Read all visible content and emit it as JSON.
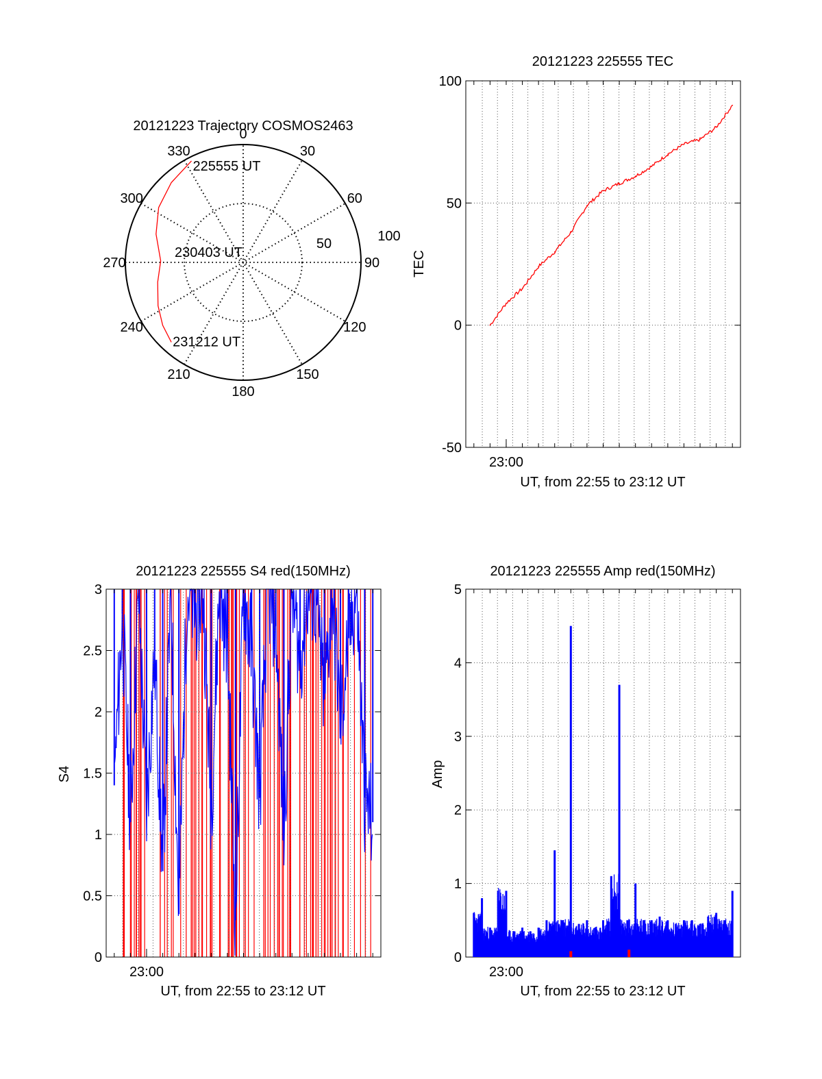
{
  "chart_data": [
    {
      "type": "polar",
      "title": "20121223 Trajectory COSMOS2463",
      "azimuth_labels": [
        "0",
        "30",
        "60",
        "90",
        "120",
        "150",
        "180",
        "210",
        "240",
        "270",
        "300",
        "330"
      ],
      "radial_labels": [
        "50",
        "100"
      ],
      "center_label": "230403 UT",
      "track_color": "#ff0000",
      "track": {
        "start": {
          "label": "225555 UT",
          "az": 333,
          "el": 3
        },
        "mid": {
          "label": "230403 UT",
          "az": 271,
          "el": 27
        },
        "end": {
          "label": "231212 UT",
          "az": 222,
          "el": 8
        },
        "points": [
          [
            333,
            3
          ],
          [
            318,
            8
          ],
          [
            303,
            13
          ],
          [
            288,
            20
          ],
          [
            271,
            27
          ],
          [
            257,
            23
          ],
          [
            243,
            17
          ],
          [
            232,
            12
          ],
          [
            222,
            8
          ]
        ]
      }
    },
    {
      "type": "line",
      "title": "20121223 225555 TEC",
      "xlabel": "UT, from 22:55 to 23:12 UT",
      "ylabel": "TEC",
      "xlim": [
        -2.5,
        14.5
      ],
      "ylim": [
        -50,
        100
      ],
      "yticks": [
        "100",
        "50",
        "0",
        "-50"
      ],
      "xtick_labels": [
        {
          "x": 0,
          "label": "23:00"
        }
      ],
      "grid": true,
      "series_color": "#ff0000",
      "x": [
        -1,
        0,
        1,
        2,
        3,
        4,
        5,
        6,
        7,
        8,
        9,
        10,
        11,
        12,
        13,
        14
      ],
      "values": [
        0,
        9,
        15,
        24,
        30,
        38,
        49,
        55,
        58,
        61,
        65,
        70,
        74,
        76,
        81,
        90
      ]
    },
    {
      "type": "line",
      "title": "20121223 225555 S4 red(150MHz)",
      "xlabel": "UT, from 22:55 to 23:12 UT",
      "ylabel": "S4",
      "xlim": [
        -2.5,
        14.5
      ],
      "ylim": [
        0,
        3
      ],
      "yticks": [
        "3",
        "2.5",
        "2",
        "1.5",
        "1",
        "0.5",
        "0"
      ],
      "xtick_labels": [
        {
          "x": 0,
          "label": "23:00"
        }
      ],
      "grid": true,
      "colors": {
        "blue": "#0000ff",
        "red": "#ff0000"
      },
      "x": [
        -2.0,
        -1.5,
        -1.0,
        -0.5,
        0.0,
        0.5,
        1.0,
        1.5,
        2.0,
        2.5,
        3.0,
        3.5,
        4.0,
        4.5,
        5.0,
        5.5,
        6.0,
        6.5,
        7.0,
        7.5,
        8.0,
        8.5,
        9.0,
        9.5,
        10.0,
        10.5,
        11.0,
        11.5,
        12.0,
        12.5,
        13.0,
        13.5,
        14.0
      ],
      "values": [
        1.4,
        2.8,
        1.1,
        3.0,
        1.2,
        2.5,
        0.7,
        3.0,
        0.35,
        3.0,
        2.8,
        3.0,
        1.2,
        3.0,
        2.6,
        0.3,
        3.0,
        2.5,
        1.3,
        3.0,
        2.7,
        1.0,
        3.0,
        2.4,
        3.0,
        2.9,
        2.1,
        3.0,
        1.9,
        2.6,
        3.0,
        1.3,
        1.1
      ]
    },
    {
      "type": "bar",
      "title": "20121223 225555 Amp red(150MHz)",
      "xlabel": "UT, from 22:55 to 23:12 UT",
      "ylabel": "Amp",
      "xlim": [
        -2.5,
        14.5
      ],
      "ylim": [
        0,
        5
      ],
      "yticks": [
        "5",
        "4",
        "3",
        "2",
        "1",
        "0"
      ],
      "xtick_labels": [
        {
          "x": 0,
          "label": "23:00"
        }
      ],
      "grid": true,
      "colors": {
        "blue": "#0000ff",
        "red": "#ff0000"
      },
      "x": [
        -2.0,
        -1.5,
        -1.0,
        -0.5,
        0.0,
        0.5,
        1.0,
        1.5,
        2.0,
        2.5,
        3.0,
        3.5,
        4.0,
        4.5,
        5.0,
        5.5,
        6.0,
        6.5,
        7.0,
        7.5,
        8.0,
        8.5,
        9.0,
        9.5,
        10.0,
        10.5,
        11.0,
        11.5,
        12.0,
        12.5,
        13.0,
        13.5,
        14.0
      ],
      "values": [
        0.6,
        0.8,
        0.4,
        0.9,
        0.9,
        0.35,
        0.4,
        0.35,
        0.4,
        0.5,
        1.45,
        0.5,
        4.5,
        0.45,
        0.5,
        0.4,
        0.5,
        1.1,
        3.7,
        0.5,
        1.0,
        0.5,
        0.5,
        0.55,
        0.5,
        0.45,
        0.5,
        0.5,
        0.45,
        0.55,
        0.6,
        0.5,
        0.9
      ],
      "red_spikes": [
        {
          "x": 4.0,
          "value": 0.08
        },
        {
          "x": 7.6,
          "value": 0.1
        }
      ]
    }
  ]
}
